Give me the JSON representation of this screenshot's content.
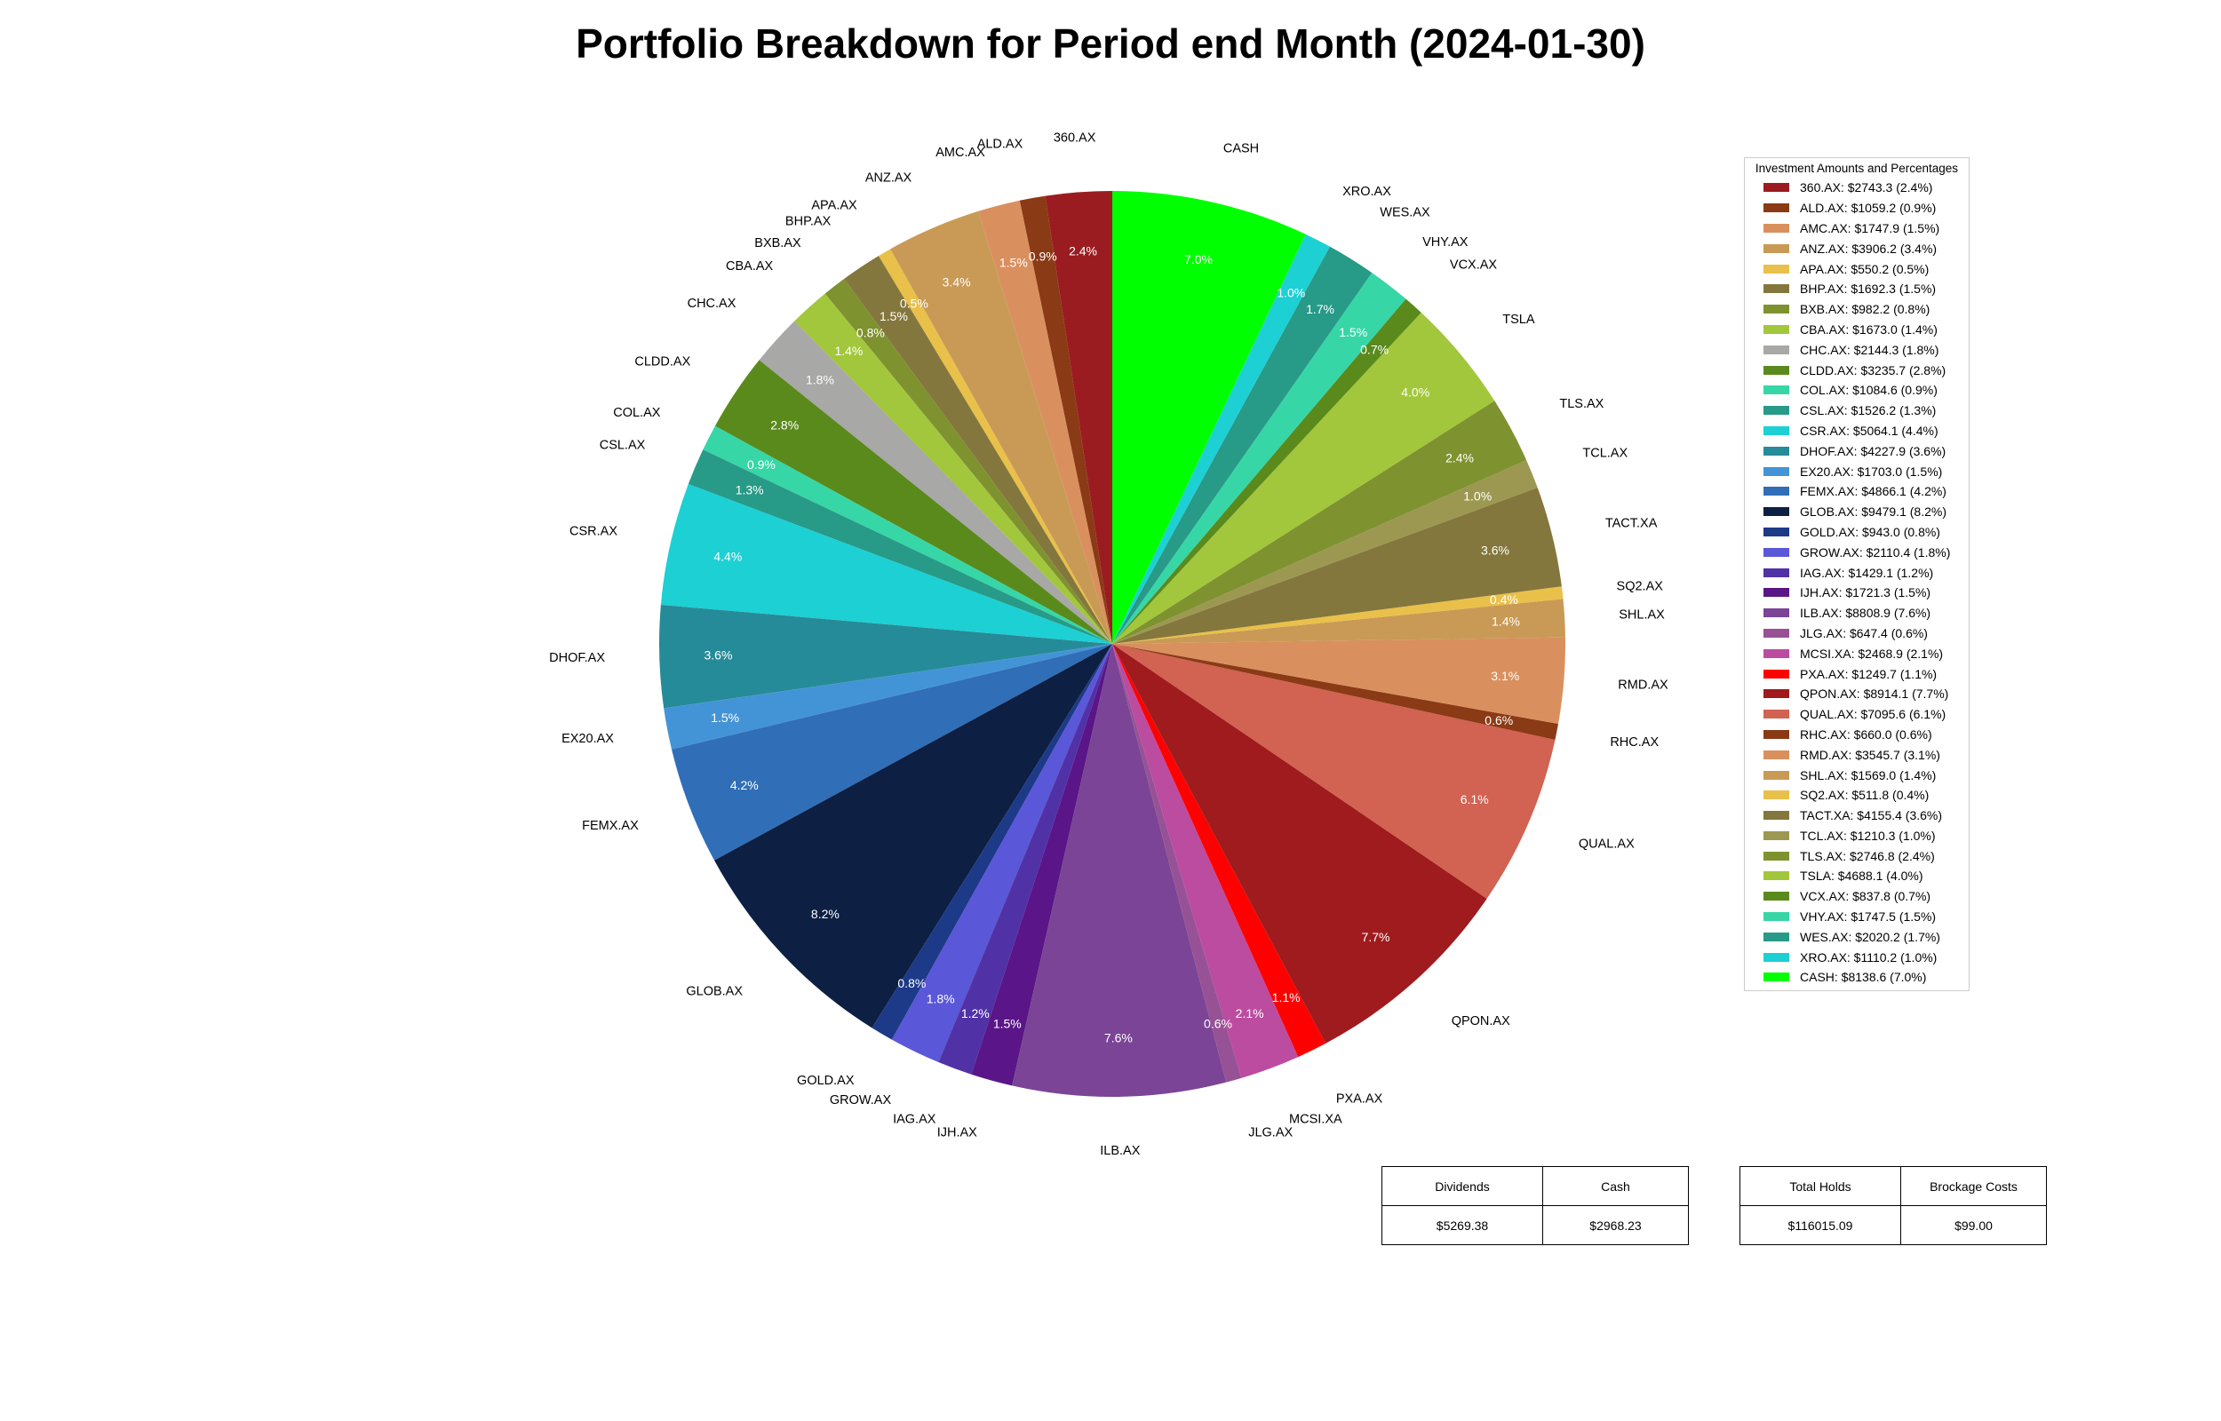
{
  "chart_data": {
    "type": "pie",
    "title": "Portfolio Breakdown for Period end Month (2024-01-30)",
    "legend_title": "Investment Amounts and Percentages",
    "legend_position": "right",
    "start_angle_deg": 90,
    "direction": "counterclockwise",
    "slices": [
      {
        "label": "360.AX",
        "value": 2743.3,
        "pct": "2.4%",
        "legend": "360.AX: $2743.3 (2.4%)",
        "color": "#9B1C20"
      },
      {
        "label": "ALD.AX",
        "value": 1059.2,
        "pct": "0.9%",
        "legend": "ALD.AX: $1059.2 (0.9%)",
        "color": "#8B3A16"
      },
      {
        "label": "AMC.AX",
        "value": 1747.9,
        "pct": "1.5%",
        "legend": "AMC.AX: $1747.9 (1.5%)",
        "color": "#D9905E"
      },
      {
        "label": "ANZ.AX",
        "value": 3906.2,
        "pct": "3.4%",
        "legend": "ANZ.AX: $3906.2 (3.4%)",
        "color": "#C99A55"
      },
      {
        "label": "APA.AX",
        "value": 550.2,
        "pct": "0.5%",
        "legend": "APA.AX: $550.2 (0.5%)",
        "color": "#E9C04A"
      },
      {
        "label": "BHP.AX",
        "value": 1692.3,
        "pct": "1.5%",
        "legend": "BHP.AX: $1692.3 (1.5%)",
        "color": "#84773D"
      },
      {
        "label": "BXB.AX",
        "value": 982.2,
        "pct": "0.8%",
        "legend": "BXB.AX: $982.2 (0.8%)",
        "color": "#7F9230"
      },
      {
        "label": "CBA.AX",
        "value": 1673.0,
        "pct": "1.4%",
        "legend": "CBA.AX: $1673.0 (1.4%)",
        "color": "#A2C73C"
      },
      {
        "label": "CHC.AX",
        "value": 2144.3,
        "pct": "1.8%",
        "legend": "CHC.AX: $2144.3 (1.8%)",
        "color": "#A8A8A6"
      },
      {
        "label": "CLDD.AX",
        "value": 3235.7,
        "pct": "2.8%",
        "legend": "CLDD.AX: $3235.7 (2.8%)",
        "color": "#5A8A1C"
      },
      {
        "label": "COL.AX",
        "value": 1084.6,
        "pct": "0.9%",
        "legend": "COL.AX: $1084.6 (0.9%)",
        "color": "#37D6A6"
      },
      {
        "label": "CSL.AX",
        "value": 1526.2,
        "pct": "1.3%",
        "legend": "CSL.AX: $1526.2 (1.3%)",
        "color": "#279A88"
      },
      {
        "label": "CSR.AX",
        "value": 5064.1,
        "pct": "4.4%",
        "legend": "CSR.AX: $5064.1 (4.4%)",
        "color": "#1DD0D4"
      },
      {
        "label": "DHOF.AX",
        "value": 4227.9,
        "pct": "3.6%",
        "legend": "DHOF.AX: $4227.9 (3.6%)",
        "color": "#268B98"
      },
      {
        "label": "EX20.AX",
        "value": 1703.0,
        "pct": "1.5%",
        "legend": "EX20.AX: $1703.0 (1.5%)",
        "color": "#4394D6"
      },
      {
        "label": "FEMX.AX",
        "value": 4866.1,
        "pct": "4.2%",
        "legend": "FEMX.AX: $4866.1 (4.2%)",
        "color": "#306EB8"
      },
      {
        "label": "GLOB.AX",
        "value": 9479.1,
        "pct": "8.2%",
        "legend": "GLOB.AX: $9479.1 (8.2%)",
        "color": "#0D1F42"
      },
      {
        "label": "GOLD.AX",
        "value": 943.0,
        "pct": "0.8%",
        "legend": "GOLD.AX: $943.0 (0.8%)",
        "color": "#1D3A88"
      },
      {
        "label": "GROW.AX",
        "value": 2110.4,
        "pct": "1.8%",
        "legend": "GROW.AX: $2110.4 (1.8%)",
        "color": "#5A57D8"
      },
      {
        "label": "IAG.AX",
        "value": 1429.1,
        "pct": "1.2%",
        "legend": "IAG.AX: $1429.1 (1.2%)",
        "color": "#5032A6"
      },
      {
        "label": "IJH.AX",
        "value": 1721.3,
        "pct": "1.5%",
        "legend": "IJH.AX: $1721.3 (1.5%)",
        "color": "#5A1588"
      },
      {
        "label": "ILB.AX",
        "value": 8808.9,
        "pct": "7.6%",
        "legend": "ILB.AX: $8808.9 (7.6%)",
        "color": "#7B4496"
      },
      {
        "label": "JLG.AX",
        "value": 647.4,
        "pct": "0.6%",
        "legend": "JLG.AX: $647.4 (0.6%)",
        "color": "#975296"
      },
      {
        "label": "MCSI.XA",
        "value": 2468.9,
        "pct": "2.1%",
        "legend": "MCSI.XA: $2468.9 (2.1%)",
        "color": "#BC4CA0"
      },
      {
        "label": "PXA.AX",
        "value": 1249.7,
        "pct": "1.1%",
        "legend": "PXA.AX: $1249.7 (1.1%)",
        "color": "#FF0000"
      },
      {
        "label": "QPON.AX",
        "value": 8914.1,
        "pct": "7.7%",
        "legend": "QPON.AX: $8914.1 (7.7%)",
        "color": "#9F1B1E"
      },
      {
        "label": "QUAL.AX",
        "value": 7095.6,
        "pct": "6.1%",
        "legend": "QUAL.AX: $7095.6 (6.1%)",
        "color": "#D26252"
      },
      {
        "label": "RHC.AX",
        "value": 660.0,
        "pct": "0.6%",
        "legend": "RHC.AX: $660.0 (0.6%)",
        "color": "#8B3A16"
      },
      {
        "label": "RMD.AX",
        "value": 3545.7,
        "pct": "3.1%",
        "legend": "RMD.AX: $3545.7 (3.1%)",
        "color": "#D9905E"
      },
      {
        "label": "SHL.AX",
        "value": 1569.0,
        "pct": "1.4%",
        "legend": "SHL.AX: $1569.0 (1.4%)",
        "color": "#C99A55"
      },
      {
        "label": "SQ2.AX",
        "value": 511.8,
        "pct": "0.4%",
        "legend": "SQ2.AX: $511.8 (0.4%)",
        "color": "#E9C04A"
      },
      {
        "label": "TACT.XA",
        "value": 4155.4,
        "pct": "3.6%",
        "legend": "TACT.XA: $4155.4 (3.6%)",
        "color": "#84773D"
      },
      {
        "label": "TCL.AX",
        "value": 1210.3,
        "pct": "1.0%",
        "legend": "TCL.AX: $1210.3 (1.0%)",
        "color": "#9C9852"
      },
      {
        "label": "TLS.AX",
        "value": 2746.8,
        "pct": "2.4%",
        "legend": "TLS.AX: $2746.8 (2.4%)",
        "color": "#7F9230"
      },
      {
        "label": "TSLA",
        "value": 4688.1,
        "pct": "4.0%",
        "legend": "TSLA: $4688.1 (4.0%)",
        "color": "#A2C73C"
      },
      {
        "label": "VCX.AX",
        "value": 837.8,
        "pct": "0.7%",
        "legend": "VCX.AX: $837.8 (0.7%)",
        "color": "#5A8A1C"
      },
      {
        "label": "VHY.AX",
        "value": 1747.5,
        "pct": "1.5%",
        "legend": "VHY.AX: $1747.5 (1.5%)",
        "color": "#37D6A6"
      },
      {
        "label": "WES.AX",
        "value": 2020.2,
        "pct": "1.7%",
        "legend": "WES.AX: $2020.2 (1.7%)",
        "color": "#279A88"
      },
      {
        "label": "XRO.AX",
        "value": 1110.2,
        "pct": "1.0%",
        "legend": "XRO.AX: $1110.2 (1.0%)",
        "color": "#1DD0D4"
      },
      {
        "label": "CASH",
        "value": 8138.6,
        "pct": "7.0%",
        "legend": "CASH: $8138.6 (7.0%)",
        "color": "#00FF00"
      }
    ]
  },
  "summary_tables": {
    "left": {
      "headers": [
        "Dividends",
        "Cash"
      ],
      "values": [
        "$5269.38",
        "$2968.23"
      ]
    },
    "right": {
      "headers": [
        "Total Holds",
        "Brockage Costs"
      ],
      "values": [
        "$116015.09",
        "$99.00"
      ]
    }
  }
}
